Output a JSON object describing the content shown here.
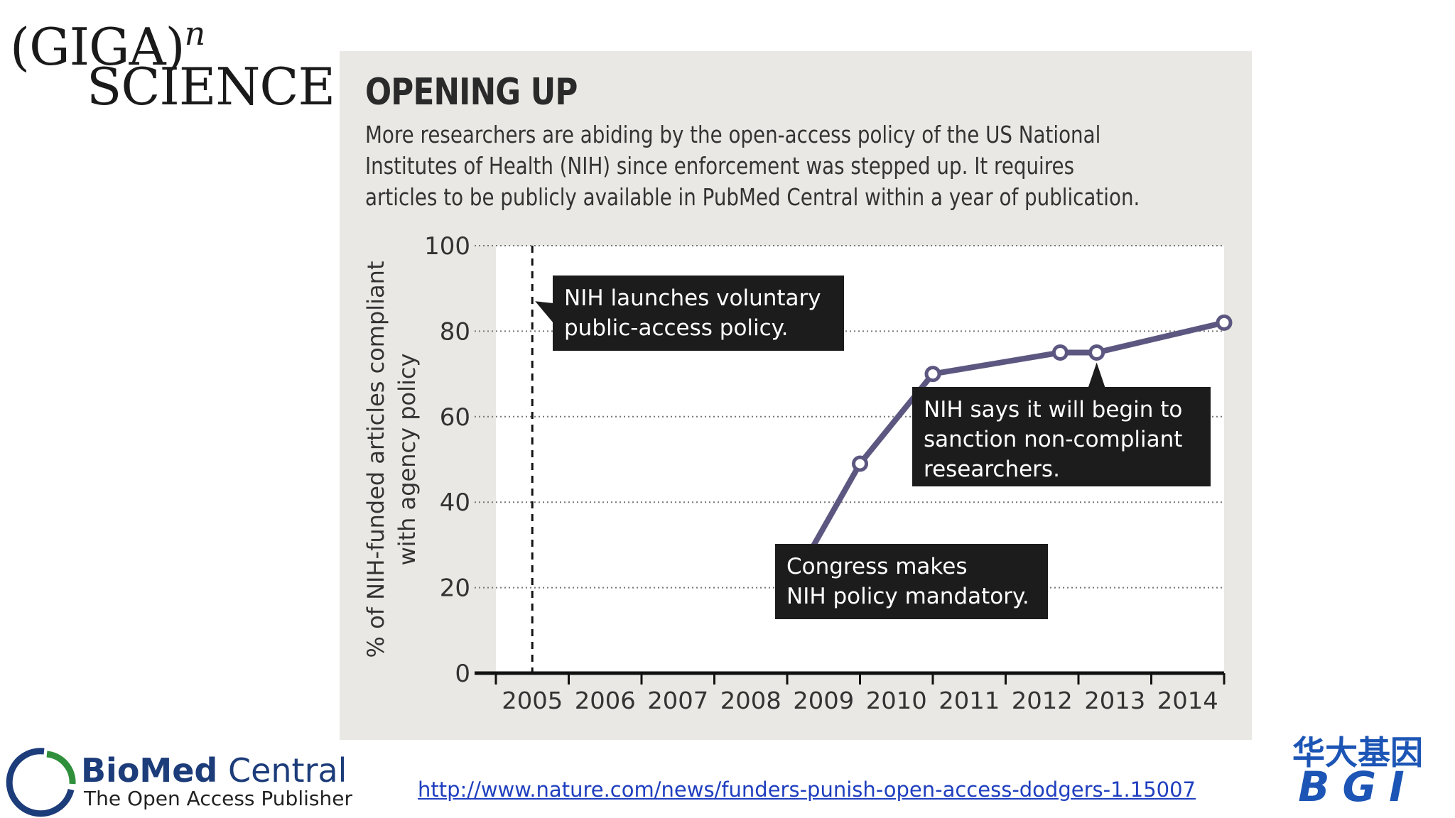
{
  "logos": {
    "gigascience_line1": "(GIGA)",
    "gigascience_exp": "n",
    "gigascience_line2": "SCIENCE",
    "biomed_bold": "BioMed",
    "biomed_rest": " Central",
    "biomed_tagline": "The Open Access Publisher",
    "bgi_chinese": "华大基因",
    "bgi_latin": "BGI"
  },
  "figure": {
    "title": "OPENING UP",
    "subtitle_lines": [
      "More researchers are abiding by the open-access policy of the US National",
      "Institutes of Health (NIH) since enforcement was stepped up. It requires",
      "articles to be publicly available in PubMed Central within a year of publication."
    ]
  },
  "source_link": "http://www.nature.com/news/funders-punish-open-access-dodgers-1.15007",
  "colors": {
    "line": "#5c5780",
    "panel": "#e9e8e4",
    "plot": "#ffffff",
    "annotation_bg": "#1c1c1c",
    "link": "#1f3fbf"
  },
  "chart_data": {
    "type": "line",
    "title": "OPENING UP",
    "ylabel_lines": [
      "% of NIH-funded articles compliant",
      "with agency policy"
    ],
    "xlabel": "",
    "x_tick_labels": [
      "2005",
      "2006",
      "2007",
      "2008",
      "2009",
      "2010",
      "2011",
      "2012",
      "2013",
      "2014"
    ],
    "x_range": [
      2004.5,
      2014.5
    ],
    "ylim": [
      0,
      100
    ],
    "y_ticks": [
      0,
      20,
      40,
      60,
      80,
      100
    ],
    "grid": "horizontal dotted",
    "series": [
      {
        "points": [
          {
            "x": 2008.5,
            "y": 19
          },
          {
            "x": 2009.5,
            "y": 49
          },
          {
            "x": 2010.5,
            "y": 70
          },
          {
            "x": 2012.25,
            "y": 75
          },
          {
            "x": 2012.75,
            "y": 75
          },
          {
            "x": 2014.5,
            "y": 82
          }
        ]
      }
    ],
    "reference_lines": [
      {
        "x": 2005,
        "style": "dashed"
      }
    ],
    "annotations": [
      {
        "lines": [
          "NIH launches voluntary",
          "public-access policy."
        ],
        "points_to": {
          "x": 2005,
          "y": 87
        }
      },
      {
        "lines": [
          "NIH says it will begin to",
          "sanction non-compliant",
          "researchers."
        ],
        "points_to": {
          "x": 2012.75,
          "y": 75
        }
      },
      {
        "lines": [
          "Congress makes",
          "NIH policy mandatory."
        ],
        "points_to": {
          "x": 2008.8,
          "y": 28
        }
      }
    ]
  }
}
